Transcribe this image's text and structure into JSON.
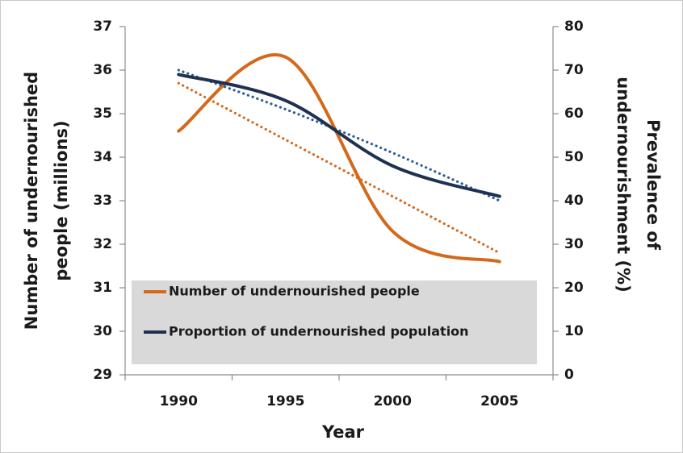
{
  "chart_data": {
    "type": "line",
    "categories": [
      "1990",
      "1995",
      "2000",
      "2005"
    ],
    "xlabel": "Year",
    "ylabel": [
      "Number of undernourished",
      "people (millions)"
    ],
    "y2label": [
      "Prevalence of",
      "undernourishment (%)"
    ],
    "ylim": [
      29,
      37
    ],
    "yticks": [
      29,
      30,
      31,
      32,
      33,
      34,
      35,
      36,
      37
    ],
    "y2lim": [
      0,
      80
    ],
    "y2ticks": [
      0,
      10,
      20,
      30,
      40,
      50,
      60,
      70,
      80
    ],
    "smooth": true,
    "legend": "bottom-left",
    "series": [
      {
        "name": "Number of undernourished people",
        "color": "#d4691b",
        "values": [
          34.6,
          36.3,
          32.3,
          31.6
        ],
        "trend": [
          35.7,
          34.4,
          33.1,
          31.8
        ]
      },
      {
        "name": "Proportion of undernourished population",
        "color": "#1f3151",
        "axis": "y2",
        "trend_color": "#2e5b91",
        "values": [
          69,
          63,
          48,
          41
        ],
        "trend": [
          70,
          61,
          51,
          40
        ]
      }
    ]
  }
}
